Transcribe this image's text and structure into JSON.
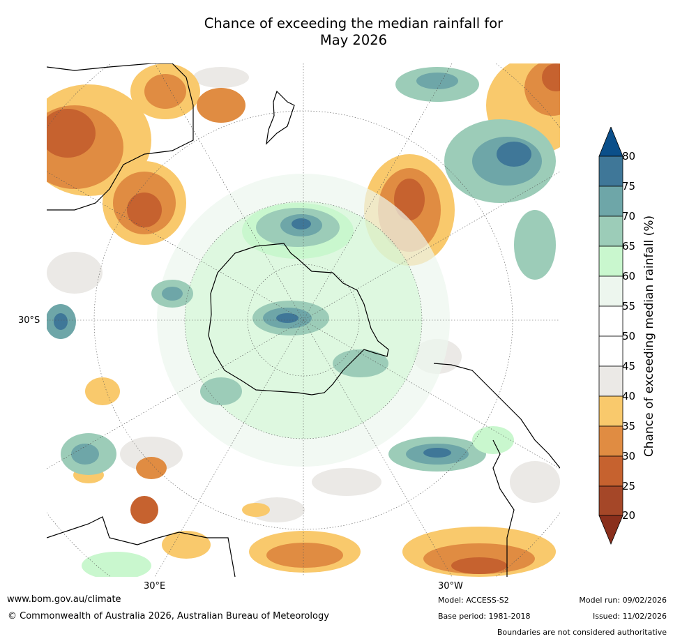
{
  "title": {
    "line1": "Chance of exceeding the median rainfall for",
    "line2": "May 2026"
  },
  "map": {
    "projection": "south-polar stereographic",
    "lat_labels": [
      "30°S"
    ],
    "lon_labels": [
      "30°E",
      "30°W"
    ],
    "landmasses": [
      "Antarctica",
      "Australia",
      "New Zealand",
      "South America",
      "Africa"
    ]
  },
  "colorbar": {
    "label": "Chance of exceeding median rainfall (%)",
    "ticks": [
      "80",
      "75",
      "70",
      "65",
      "60",
      "55",
      "50",
      "45",
      "40",
      "35",
      "30",
      "25",
      "20"
    ],
    "colors": {
      "above80": "#0b4f8a",
      "75_80": "#3f7798",
      "70_75": "#6ea6a8",
      "65_70": "#9cccb8",
      "60_65": "#c9f7ce",
      "55_60": "#edf6ee",
      "50_55": "#ffffff",
      "45_50": "#ffffff",
      "40_45": "#ebe9e6",
      "35_40": "#f9c96c",
      "30_35": "#e08c42",
      "25_30": "#c6622f",
      "20_25": "#a54728",
      "below20": "#8a2f1c"
    }
  },
  "footer": {
    "url": "www.bom.gov.au/climate",
    "copyright": "© Commonwealth of Australia 2026, Australian Bureau of Meteorology",
    "model": "Model: ACCESS-S2",
    "base_period": "Base period: 1981-2018",
    "model_run": "Model run: 09/02/2026",
    "issued": "Issued: 11/02/2026",
    "disclaimer": "Boundaries are not considered authoritative"
  }
}
